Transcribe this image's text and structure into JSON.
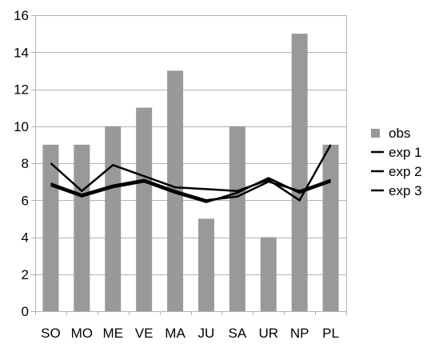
{
  "chart_data": {
    "type": "bar",
    "categories": [
      "SO",
      "MO",
      "ME",
      "VE",
      "MA",
      "JU",
      "SA",
      "UR",
      "NP",
      "PL"
    ],
    "ylim": [
      0,
      16
    ],
    "yticks": [
      0,
      2,
      4,
      6,
      8,
      10,
      12,
      14,
      16
    ],
    "grid": "horizontal",
    "legend_position": "right",
    "series": [
      {
        "name": "obs",
        "kind": "bar",
        "color": "#999999",
        "values": [
          9,
          9,
          10,
          11,
          13,
          5,
          10,
          4,
          15,
          9
        ]
      },
      {
        "name": "exp 1",
        "kind": "line",
        "color": "#000000",
        "values": [
          8.0,
          6.5,
          7.9,
          7.3,
          6.7,
          6.6,
          6.5,
          7.1,
          6.0,
          9.0
        ]
      },
      {
        "name": "exp 2",
        "kind": "line",
        "color": "#000000",
        "values": [
          6.9,
          6.3,
          6.8,
          7.1,
          6.5,
          6.0,
          6.2,
          7.0,
          6.5,
          7.1
        ]
      },
      {
        "name": "exp 3",
        "kind": "line",
        "color": "#000000",
        "values": [
          6.8,
          6.2,
          6.7,
          7.0,
          6.4,
          5.9,
          6.4,
          7.2,
          6.4,
          7.0
        ]
      }
    ]
  }
}
